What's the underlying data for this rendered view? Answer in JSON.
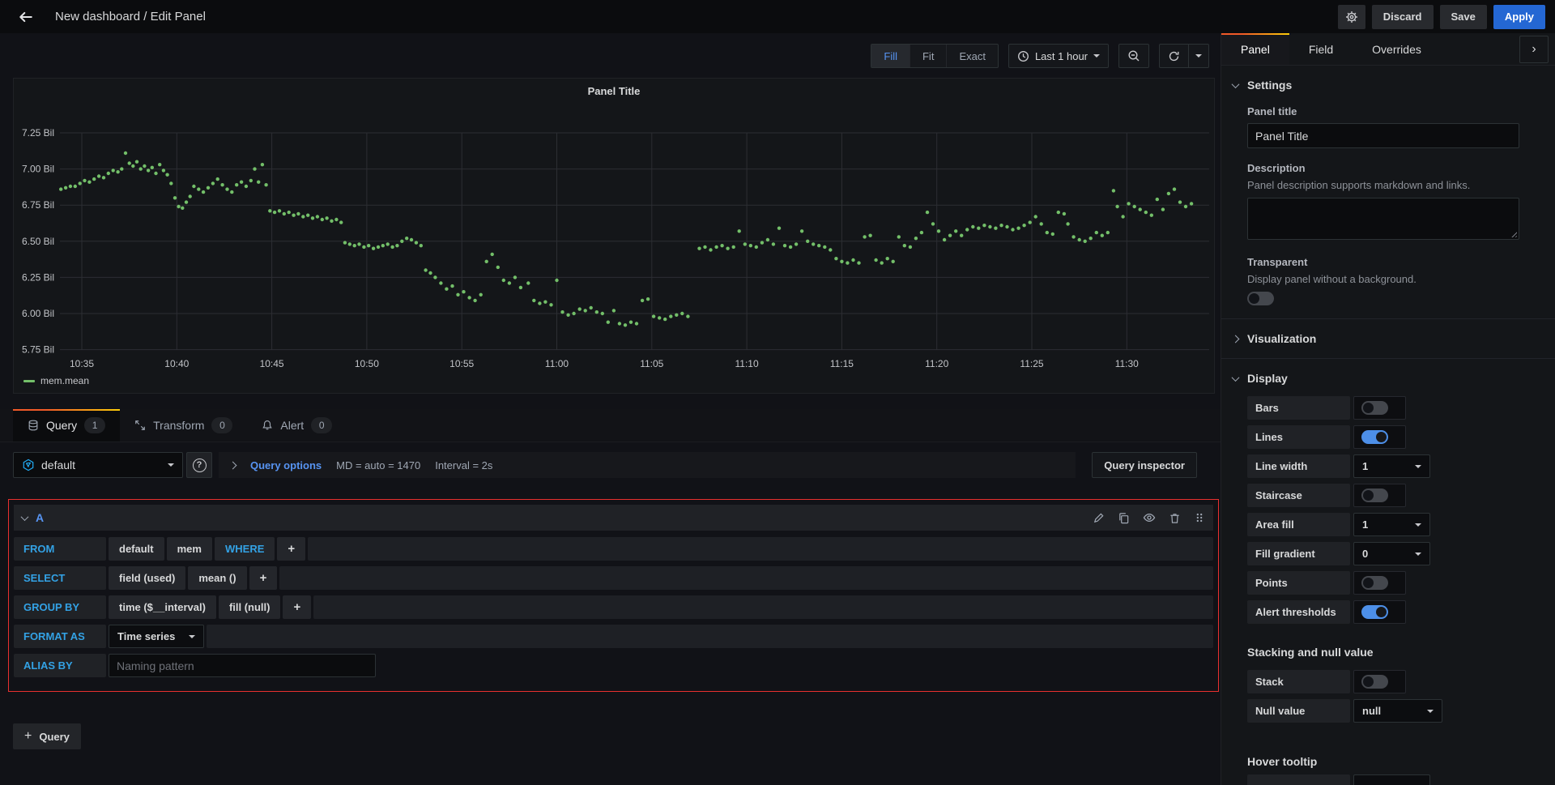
{
  "nav": {
    "title": "New dashboard / Edit Panel",
    "discard": "Discard",
    "save": "Save",
    "apply": "Apply"
  },
  "toolbar": {
    "fit_modes": [
      "Fill",
      "Fit",
      "Exact"
    ],
    "active_mode": "Fill",
    "time_range": "Last 1 hour"
  },
  "panel": {
    "title": "Panel Title"
  },
  "chart_data": {
    "type": "scatter",
    "title": "Panel Title",
    "series_name": "mem.mean",
    "point_color": "#73bf69",
    "grid": true,
    "legend_position": "bottom-left",
    "x_unit": "time of day (minutes after 10:30)",
    "y_unit": "billions",
    "ylim": [
      5.75,
      7.25
    ],
    "x_ticks": [
      "10:35",
      "10:40",
      "10:45",
      "10:50",
      "10:55",
      "11:00",
      "11:05",
      "11:10",
      "11:15",
      "11:20",
      "11:25",
      "11:30"
    ],
    "y_ticks": [
      "7.25 Bil",
      "7.00 Bil",
      "6.75 Bil",
      "6.50 Bil",
      "6.25 Bil",
      "6.00 Bil",
      "5.75 Bil"
    ],
    "points": [
      [
        3.9,
        6.86
      ],
      [
        4.15,
        6.87
      ],
      [
        4.4,
        6.88
      ],
      [
        4.65,
        6.88
      ],
      [
        4.9,
        6.9
      ],
      [
        5.15,
        6.92
      ],
      [
        5.4,
        6.91
      ],
      [
        5.65,
        6.93
      ],
      [
        5.9,
        6.95
      ],
      [
        6.15,
        6.94
      ],
      [
        6.4,
        6.97
      ],
      [
        6.65,
        6.99
      ],
      [
        6.9,
        6.98
      ],
      [
        7.1,
        7.0
      ],
      [
        7.3,
        7.11
      ],
      [
        7.5,
        7.04
      ],
      [
        7.7,
        7.02
      ],
      [
        7.9,
        7.05
      ],
      [
        8.1,
        7.0
      ],
      [
        8.3,
        7.02
      ],
      [
        8.5,
        6.99
      ],
      [
        8.7,
        7.01
      ],
      [
        8.9,
        6.97
      ],
      [
        9.1,
        7.03
      ],
      [
        9.3,
        6.99
      ],
      [
        9.5,
        6.96
      ],
      [
        9.7,
        6.9
      ],
      [
        9.9,
        6.8
      ],
      [
        10.1,
        6.74
      ],
      [
        10.3,
        6.73
      ],
      [
        10.5,
        6.77
      ],
      [
        10.7,
        6.81
      ],
      [
        10.9,
        6.88
      ],
      [
        11.15,
        6.86
      ],
      [
        11.4,
        6.84
      ],
      [
        11.65,
        6.87
      ],
      [
        11.9,
        6.9
      ],
      [
        12.15,
        6.93
      ],
      [
        12.4,
        6.89
      ],
      [
        12.65,
        6.86
      ],
      [
        12.9,
        6.84
      ],
      [
        13.15,
        6.89
      ],
      [
        13.4,
        6.91
      ],
      [
        13.65,
        6.88
      ],
      [
        13.9,
        6.92
      ],
      [
        14.1,
        7.0
      ],
      [
        14.3,
        6.91
      ],
      [
        14.5,
        7.03
      ],
      [
        14.7,
        6.89
      ],
      [
        14.9,
        6.71
      ],
      [
        15.15,
        6.7
      ],
      [
        15.4,
        6.71
      ],
      [
        15.65,
        6.69
      ],
      [
        15.9,
        6.7
      ],
      [
        16.15,
        6.68
      ],
      [
        16.4,
        6.69
      ],
      [
        16.65,
        6.67
      ],
      [
        16.9,
        6.68
      ],
      [
        17.15,
        6.66
      ],
      [
        17.4,
        6.67
      ],
      [
        17.65,
        6.65
      ],
      [
        17.9,
        6.66
      ],
      [
        18.15,
        6.64
      ],
      [
        18.4,
        6.65
      ],
      [
        18.65,
        6.63
      ],
      [
        18.85,
        6.49
      ],
      [
        19.1,
        6.48
      ],
      [
        19.35,
        6.47
      ],
      [
        19.6,
        6.48
      ],
      [
        19.85,
        6.46
      ],
      [
        20.1,
        6.47
      ],
      [
        20.35,
        6.45
      ],
      [
        20.6,
        6.46
      ],
      [
        20.85,
        6.47
      ],
      [
        21.1,
        6.48
      ],
      [
        21.35,
        6.46
      ],
      [
        21.6,
        6.47
      ],
      [
        21.85,
        6.5
      ],
      [
        22.1,
        6.52
      ],
      [
        22.35,
        6.51
      ],
      [
        22.6,
        6.49
      ],
      [
        22.85,
        6.47
      ],
      [
        23.1,
        6.3
      ],
      [
        23.35,
        6.28
      ],
      [
        23.6,
        6.25
      ],
      [
        23.9,
        6.21
      ],
      [
        24.2,
        6.17
      ],
      [
        24.5,
        6.19
      ],
      [
        24.8,
        6.13
      ],
      [
        25.1,
        6.15
      ],
      [
        25.4,
        6.11
      ],
      [
        25.7,
        6.09
      ],
      [
        26.0,
        6.13
      ],
      [
        26.3,
        6.36
      ],
      [
        26.6,
        6.41
      ],
      [
        26.9,
        6.32
      ],
      [
        27.2,
        6.23
      ],
      [
        27.5,
        6.21
      ],
      [
        27.8,
        6.25
      ],
      [
        28.1,
        6.18
      ],
      [
        28.5,
        6.21
      ],
      [
        28.8,
        6.09
      ],
      [
        29.1,
        6.07
      ],
      [
        29.4,
        6.08
      ],
      [
        29.7,
        6.06
      ],
      [
        30.0,
        6.23
      ],
      [
        30.3,
        6.01
      ],
      [
        30.6,
        5.99
      ],
      [
        30.9,
        6.0
      ],
      [
        31.2,
        6.03
      ],
      [
        31.5,
        6.02
      ],
      [
        31.8,
        6.04
      ],
      [
        32.1,
        6.01
      ],
      [
        32.4,
        6.0
      ],
      [
        32.7,
        5.94
      ],
      [
        33.0,
        6.02
      ],
      [
        33.3,
        5.93
      ],
      [
        33.6,
        5.92
      ],
      [
        33.9,
        5.94
      ],
      [
        34.2,
        5.93
      ],
      [
        34.5,
        6.09
      ],
      [
        34.8,
        6.1
      ],
      [
        35.1,
        5.98
      ],
      [
        35.4,
        5.97
      ],
      [
        35.7,
        5.96
      ],
      [
        36.0,
        5.98
      ],
      [
        36.3,
        5.99
      ],
      [
        36.6,
        6.0
      ],
      [
        36.9,
        5.98
      ],
      [
        37.5,
        6.45
      ],
      [
        37.8,
        6.46
      ],
      [
        38.1,
        6.44
      ],
      [
        38.4,
        6.46
      ],
      [
        38.7,
        6.47
      ],
      [
        39.0,
        6.45
      ],
      [
        39.3,
        6.46
      ],
      [
        39.6,
        6.57
      ],
      [
        39.9,
        6.48
      ],
      [
        40.2,
        6.47
      ],
      [
        40.5,
        6.46
      ],
      [
        40.8,
        6.49
      ],
      [
        41.1,
        6.51
      ],
      [
        41.4,
        6.48
      ],
      [
        41.7,
        6.59
      ],
      [
        42.0,
        6.47
      ],
      [
        42.3,
        6.46
      ],
      [
        42.6,
        6.48
      ],
      [
        42.9,
        6.57
      ],
      [
        43.2,
        6.5
      ],
      [
        43.5,
        6.48
      ],
      [
        43.8,
        6.47
      ],
      [
        44.1,
        6.46
      ],
      [
        44.4,
        6.44
      ],
      [
        44.7,
        6.38
      ],
      [
        45.0,
        6.36
      ],
      [
        45.3,
        6.35
      ],
      [
        45.6,
        6.37
      ],
      [
        45.9,
        6.35
      ],
      [
        46.2,
        6.53
      ],
      [
        46.5,
        6.54
      ],
      [
        46.8,
        6.37
      ],
      [
        47.1,
        6.35
      ],
      [
        47.4,
        6.38
      ],
      [
        47.7,
        6.36
      ],
      [
        48.0,
        6.53
      ],
      [
        48.3,
        6.47
      ],
      [
        48.6,
        6.46
      ],
      [
        48.9,
        6.52
      ],
      [
        49.2,
        6.56
      ],
      [
        49.5,
        6.7
      ],
      [
        49.8,
        6.62
      ],
      [
        50.1,
        6.57
      ],
      [
        50.4,
        6.51
      ],
      [
        50.7,
        6.54
      ],
      [
        51.0,
        6.57
      ],
      [
        51.3,
        6.54
      ],
      [
        51.6,
        6.58
      ],
      [
        51.9,
        6.6
      ],
      [
        52.2,
        6.59
      ],
      [
        52.5,
        6.61
      ],
      [
        52.8,
        6.6
      ],
      [
        53.1,
        6.59
      ],
      [
        53.4,
        6.61
      ],
      [
        53.7,
        6.6
      ],
      [
        54.0,
        6.58
      ],
      [
        54.3,
        6.59
      ],
      [
        54.6,
        6.61
      ],
      [
        54.9,
        6.63
      ],
      [
        55.2,
        6.67
      ],
      [
        55.5,
        6.62
      ],
      [
        55.8,
        6.56
      ],
      [
        56.1,
        6.55
      ],
      [
        56.4,
        6.7
      ],
      [
        56.7,
        6.69
      ],
      [
        56.9,
        6.62
      ],
      [
        57.2,
        6.53
      ],
      [
        57.5,
        6.51
      ],
      [
        57.8,
        6.5
      ],
      [
        58.1,
        6.52
      ],
      [
        58.4,
        6.56
      ],
      [
        58.7,
        6.54
      ],
      [
        59.0,
        6.56
      ],
      [
        59.3,
        6.85
      ],
      [
        59.5,
        6.74
      ],
      [
        59.8,
        6.67
      ],
      [
        60.1,
        6.76
      ],
      [
        60.4,
        6.74
      ],
      [
        60.7,
        6.72
      ],
      [
        61.0,
        6.7
      ],
      [
        61.3,
        6.68
      ],
      [
        61.6,
        6.79
      ],
      [
        61.9,
        6.72
      ],
      [
        62.2,
        6.83
      ],
      [
        62.5,
        6.86
      ],
      [
        62.8,
        6.77
      ],
      [
        63.1,
        6.74
      ],
      [
        63.4,
        6.76
      ]
    ]
  },
  "tabs": [
    {
      "label": "Query",
      "badge": "1"
    },
    {
      "label": "Transform",
      "badge": "0"
    },
    {
      "label": "Alert",
      "badge": "0"
    }
  ],
  "query_bar": {
    "datasource": "default",
    "options_expander": "Query options",
    "md": "MD = auto = 1470",
    "interval": "Interval = 2s",
    "inspector": "Query inspector"
  },
  "query": {
    "ref_id": "A",
    "rows": [
      {
        "label": "FROM",
        "parts": [
          {
            "t": "default",
            "k": "value"
          },
          {
            "t": "mem",
            "k": "value"
          },
          {
            "t": "WHERE",
            "k": "keyword"
          },
          {
            "t": "+",
            "k": "plus"
          }
        ],
        "filler": true
      },
      {
        "label": "SELECT",
        "parts": [
          {
            "t": "field (used)",
            "k": "value"
          },
          {
            "t": "mean ()",
            "k": "value"
          },
          {
            "t": "+",
            "k": "plus"
          }
        ],
        "filler": true
      },
      {
        "label": "GROUP BY",
        "parts": [
          {
            "t": "time ($__interval)",
            "k": "value"
          },
          {
            "t": "fill (null)",
            "k": "value"
          },
          {
            "t": "+",
            "k": "plus"
          }
        ],
        "filler": true
      },
      {
        "label": "FORMAT AS",
        "select": "Time series",
        "filler": true
      },
      {
        "label": "ALIAS BY",
        "input_placeholder": "Naming pattern",
        "filler": false
      }
    ]
  },
  "add_query_label": "Query",
  "sidebar": {
    "tabs": [
      "Panel",
      "Field",
      "Overrides"
    ],
    "active_tab": "Panel",
    "settings": {
      "heading": "Settings",
      "panel_title_label": "Panel title",
      "panel_title_value": "Panel Title",
      "description_label": "Description",
      "description_help": "Panel description supports markdown and links.",
      "transparent_label": "Transparent",
      "transparent_help": "Display panel without a background.",
      "transparent_on": false
    },
    "visualization_heading": "Visualization",
    "display": {
      "heading": "Display",
      "options": [
        {
          "label": "Bars",
          "type": "toggle",
          "on": false
        },
        {
          "label": "Lines",
          "type": "toggle",
          "on": true
        },
        {
          "label": "Line width",
          "type": "select",
          "value": "1"
        },
        {
          "label": "Staircase",
          "type": "toggle",
          "on": false
        },
        {
          "label": "Area fill",
          "type": "select",
          "value": "1"
        },
        {
          "label": "Fill gradient",
          "type": "select",
          "value": "0"
        },
        {
          "label": "Points",
          "type": "toggle",
          "on": false
        },
        {
          "label": "Alert thresholds",
          "type": "toggle",
          "on": true
        }
      ]
    },
    "stacking": {
      "heading": "Stacking and null value",
      "options": [
        {
          "label": "Stack",
          "type": "toggle",
          "on": false
        },
        {
          "label": "Null value",
          "type": "select",
          "value": "null",
          "wide": true
        }
      ]
    },
    "hover_tooltip_heading": "Hover tooltip"
  },
  "colors": {
    "point_green": "#73bf69",
    "link_blue": "#5794f2",
    "keyword_blue": "#33a2e5",
    "apply_blue": "#2467d3",
    "highlight_red": "#e8302f",
    "tab_accent_start": "#f05a28",
    "tab_accent_end": "#fbca0a"
  }
}
